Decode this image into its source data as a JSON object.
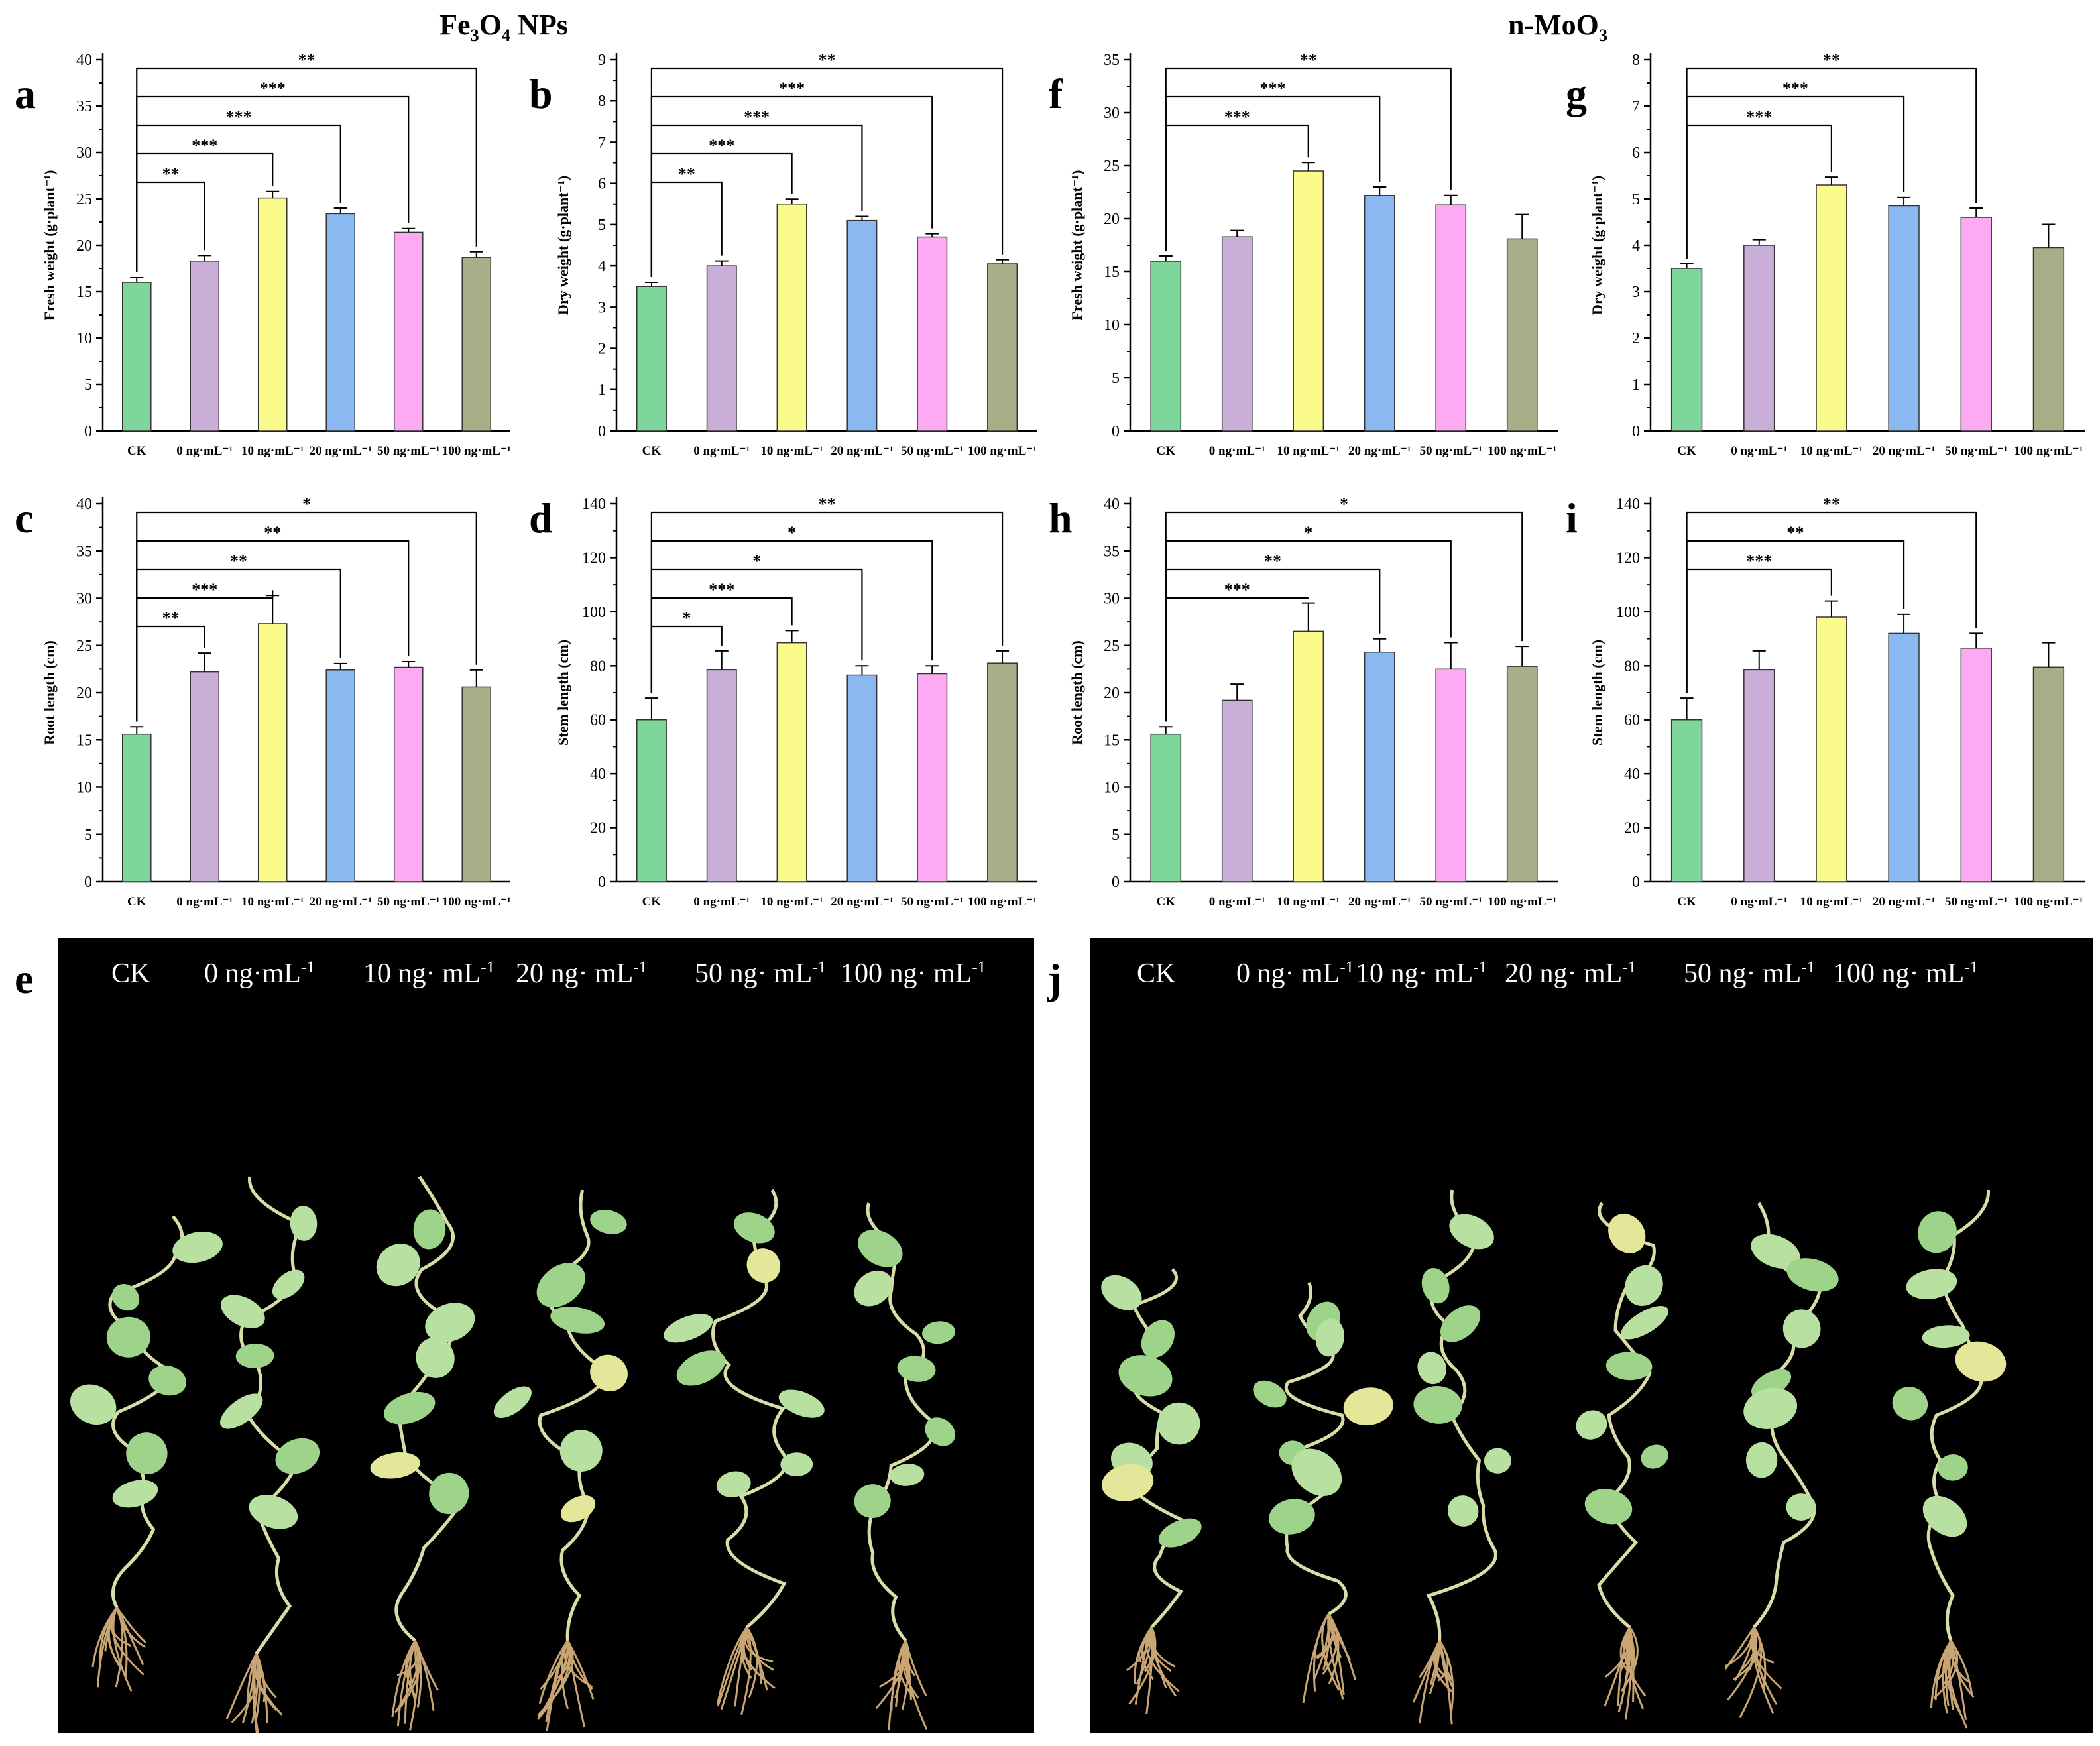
{
  "sections": [
    {
      "title_main": "Fe",
      "title_sub1": "3",
      "title_mid": "O",
      "title_sub2": "4",
      "title_end": " NPs"
    },
    {
      "title_main": "n-MoO",
      "title_sub1": "3",
      "title_mid": "",
      "title_sub2": "",
      "title_end": ""
    }
  ],
  "colors": [
    "#7fd69a",
    "#c9aed8",
    "#fbfb8c",
    "#8ab8f0",
    "#fcaaf2",
    "#a9ae88"
  ],
  "chart_data": [
    {
      "id": "a",
      "type": "bar",
      "ylabel": "Fresh weight (g·plant⁻¹)",
      "ylim": [
        0,
        40
      ],
      "step": 5,
      "categories": [
        "CK",
        "0 ng·mL⁻¹",
        "10 ng·mL⁻¹",
        "20 ng·mL⁻¹",
        "50 ng·mL⁻¹",
        "100 ng·mL⁻¹"
      ],
      "values": [
        16.0,
        18.3,
        25.1,
        23.4,
        21.4,
        18.7
      ],
      "errors": [
        0.5,
        0.6,
        0.7,
        0.6,
        0.4,
        0.6
      ],
      "sig": [
        {
          "to": 1,
          "label": "**"
        },
        {
          "to": 2,
          "label": "***"
        },
        {
          "to": 3,
          "label": "***"
        },
        {
          "to": 4,
          "label": "***"
        },
        {
          "to": 5,
          "label": "**"
        }
      ]
    },
    {
      "id": "b",
      "type": "bar",
      "ylabel": "Dry weight (g·plant⁻¹)",
      "ylim": [
        0,
        9
      ],
      "step": 1,
      "categories": [
        "CK",
        "0 ng·mL⁻¹",
        "10 ng·mL⁻¹",
        "20 ng·mL⁻¹",
        "50 ng·mL⁻¹",
        "100 ng·mL⁻¹"
      ],
      "values": [
        3.5,
        4.0,
        5.5,
        5.1,
        4.7,
        4.05
      ],
      "errors": [
        0.1,
        0.12,
        0.12,
        0.1,
        0.08,
        0.1
      ],
      "sig": [
        {
          "to": 1,
          "label": "**"
        },
        {
          "to": 2,
          "label": "***"
        },
        {
          "to": 3,
          "label": "***"
        },
        {
          "to": 4,
          "label": "***"
        },
        {
          "to": 5,
          "label": "**"
        }
      ]
    },
    {
      "id": "f",
      "type": "bar",
      "ylabel": "Fresh weight (g·plant⁻¹)",
      "ylim": [
        0,
        35
      ],
      "step": 5,
      "categories": [
        "CK",
        "0 ng·mL⁻¹",
        "10 ng·mL⁻¹",
        "20 ng·mL⁻¹",
        "50 ng·mL⁻¹",
        "100 ng·mL⁻¹"
      ],
      "values": [
        16.0,
        18.3,
        24.5,
        22.2,
        21.3,
        18.1
      ],
      "errors": [
        0.5,
        0.6,
        0.8,
        0.8,
        0.9,
        2.3
      ],
      "sig": [
        {
          "to": 2,
          "label": "***"
        },
        {
          "to": 3,
          "label": "***"
        },
        {
          "to": 4,
          "label": "**"
        }
      ]
    },
    {
      "id": "g",
      "type": "bar",
      "ylabel": "Dry weight (g·plant⁻¹)",
      "ylim": [
        0,
        8
      ],
      "step": 1,
      "categories": [
        "CK",
        "0 ng·mL⁻¹",
        "10 ng·mL⁻¹",
        "20 ng·mL⁻¹",
        "50 ng·mL⁻¹",
        "100 ng·mL⁻¹"
      ],
      "values": [
        3.5,
        4.0,
        5.3,
        4.85,
        4.6,
        3.95
      ],
      "errors": [
        0.1,
        0.12,
        0.17,
        0.18,
        0.2,
        0.5
      ],
      "sig": [
        {
          "to": 2,
          "label": "***"
        },
        {
          "to": 3,
          "label": "***"
        },
        {
          "to": 4,
          "label": "**"
        }
      ]
    },
    {
      "id": "c",
      "type": "bar",
      "ylabel": "Root length (cm)",
      "ylim": [
        0,
        40
      ],
      "step": 5,
      "categories": [
        "CK",
        "0 ng·mL⁻¹",
        "10 ng·mL⁻¹",
        "20 ng·mL⁻¹",
        "50 ng·mL⁻¹",
        "100 ng·mL⁻¹"
      ],
      "values": [
        15.6,
        22.2,
        27.3,
        22.4,
        22.7,
        20.6
      ],
      "errors": [
        0.8,
        2.0,
        3.0,
        0.7,
        0.6,
        1.8
      ],
      "sig": [
        {
          "to": 1,
          "label": "**"
        },
        {
          "to": 2,
          "label": "***"
        },
        {
          "to": 3,
          "label": "**"
        },
        {
          "to": 4,
          "label": "**"
        },
        {
          "to": 5,
          "label": "*"
        }
      ]
    },
    {
      "id": "d",
      "type": "bar",
      "ylabel": "Stem length (cm)",
      "ylim": [
        0,
        140
      ],
      "step": 20,
      "categories": [
        "CK",
        "0 ng·mL⁻¹",
        "10 ng·mL⁻¹",
        "20 ng·mL⁻¹",
        "50 ng·mL⁻¹",
        "100 ng·mL⁻¹"
      ],
      "values": [
        60,
        78.5,
        88.5,
        76.5,
        77,
        81
      ],
      "errors": [
        8,
        7,
        4.5,
        3.5,
        3,
        4.5
      ],
      "sig": [
        {
          "to": 1,
          "label": "*"
        },
        {
          "to": 2,
          "label": "***"
        },
        {
          "to": 3,
          "label": "*"
        },
        {
          "to": 4,
          "label": "*"
        },
        {
          "to": 5,
          "label": "**"
        }
      ]
    },
    {
      "id": "h",
      "type": "bar",
      "ylabel": "Root length (cm)",
      "ylim": [
        0,
        40
      ],
      "step": 5,
      "categories": [
        "CK",
        "0 ng·mL⁻¹",
        "10 ng·mL⁻¹",
        "20 ng·mL⁻¹",
        "50 ng·mL⁻¹",
        "100 ng·mL⁻¹"
      ],
      "values": [
        15.6,
        19.2,
        26.5,
        24.3,
        22.5,
        22.8
      ],
      "errors": [
        0.8,
        1.7,
        3.0,
        1.4,
        2.8,
        2.1
      ],
      "sig": [
        {
          "to": 2,
          "label": "***"
        },
        {
          "to": 3,
          "label": "**"
        },
        {
          "to": 4,
          "label": "*"
        },
        {
          "to": 5,
          "label": "*"
        }
      ]
    },
    {
      "id": "i",
      "type": "bar",
      "ylabel": "Stem length (cm)",
      "ylim": [
        0,
        140
      ],
      "step": 20,
      "categories": [
        "CK",
        "0 ng·mL⁻¹",
        "10 ng·mL⁻¹",
        "20 ng·mL⁻¹",
        "50 ng·mL⁻¹",
        "100 ng·mL⁻¹"
      ],
      "values": [
        60,
        78.5,
        98,
        92,
        86.5,
        79.5
      ],
      "errors": [
        8,
        7,
        6,
        7,
        5.5,
        9
      ],
      "sig": [
        {
          "to": 2,
          "label": "***"
        },
        {
          "to": 3,
          "label": "**"
        },
        {
          "to": 4,
          "label": "**"
        }
      ]
    }
  ],
  "photo_panels": [
    {
      "id": "e",
      "labels": [
        {
          "text": "CK",
          "sup": ""
        },
        {
          "text": "0 ng·mL",
          "sup": "-1"
        },
        {
          "text": "10 ng· mL",
          "sup": "-1"
        },
        {
          "text": "20 ng· mL",
          "sup": "-1"
        },
        {
          "text": "50 ng· mL",
          "sup": "-1"
        },
        {
          "text": "100 ng· mL",
          "sup": "-1"
        }
      ]
    },
    {
      "id": "j",
      "labels": [
        {
          "text": "CK",
          "sup": ""
        },
        {
          "text": "0 ng· mL",
          "sup": "-1"
        },
        {
          "text": "10 ng· mL",
          "sup": "-1"
        },
        {
          "text": "20 ng· mL",
          "sup": "-1"
        },
        {
          "text": "50 ng· mL",
          "sup": "-1"
        },
        {
          "text": "100 ng· mL",
          "sup": "-1"
        }
      ]
    }
  ]
}
